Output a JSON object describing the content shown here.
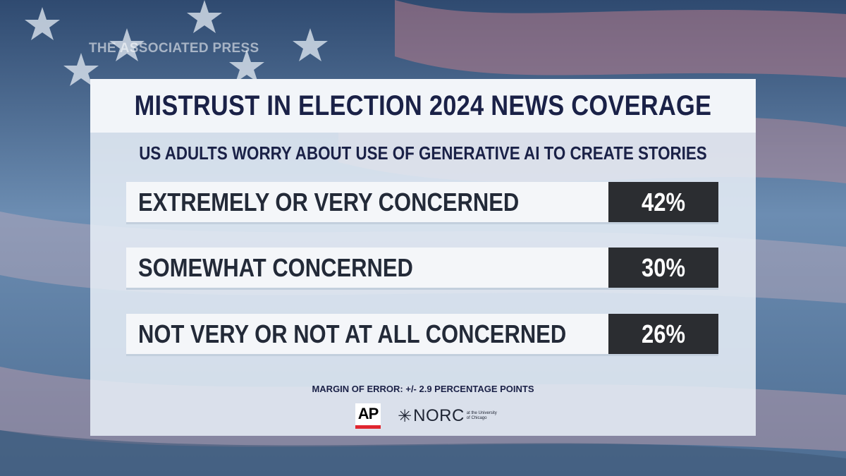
{
  "watermark": "THE ASSOCIATED PRESS",
  "chart_data": {
    "type": "table",
    "title": "MISTRUST IN ELECTION 2024 NEWS COVERAGE",
    "subtitle": "US ADULTS WORRY ABOUT USE OF GENERATIVE AI TO CREATE STORIES",
    "categories": [
      "EXTREMELY OR VERY CONCERNED",
      "SOMEWHAT CONCERNED",
      "NOT VERY OR NOT AT ALL CONCERNED"
    ],
    "values": [
      42,
      30,
      26
    ],
    "value_labels": [
      "42%",
      "30%",
      "26%"
    ],
    "note": "MARGIN OF ERROR: +/- 2.9 PERCENTAGE POINTS"
  },
  "logos": {
    "ap": "AP",
    "norc": "NORC",
    "norc_small": "at the University of Chicago"
  },
  "colors": {
    "title_text": "#1a2147",
    "value_box": "#2b2d31",
    "ap_red": "#e0262f"
  }
}
